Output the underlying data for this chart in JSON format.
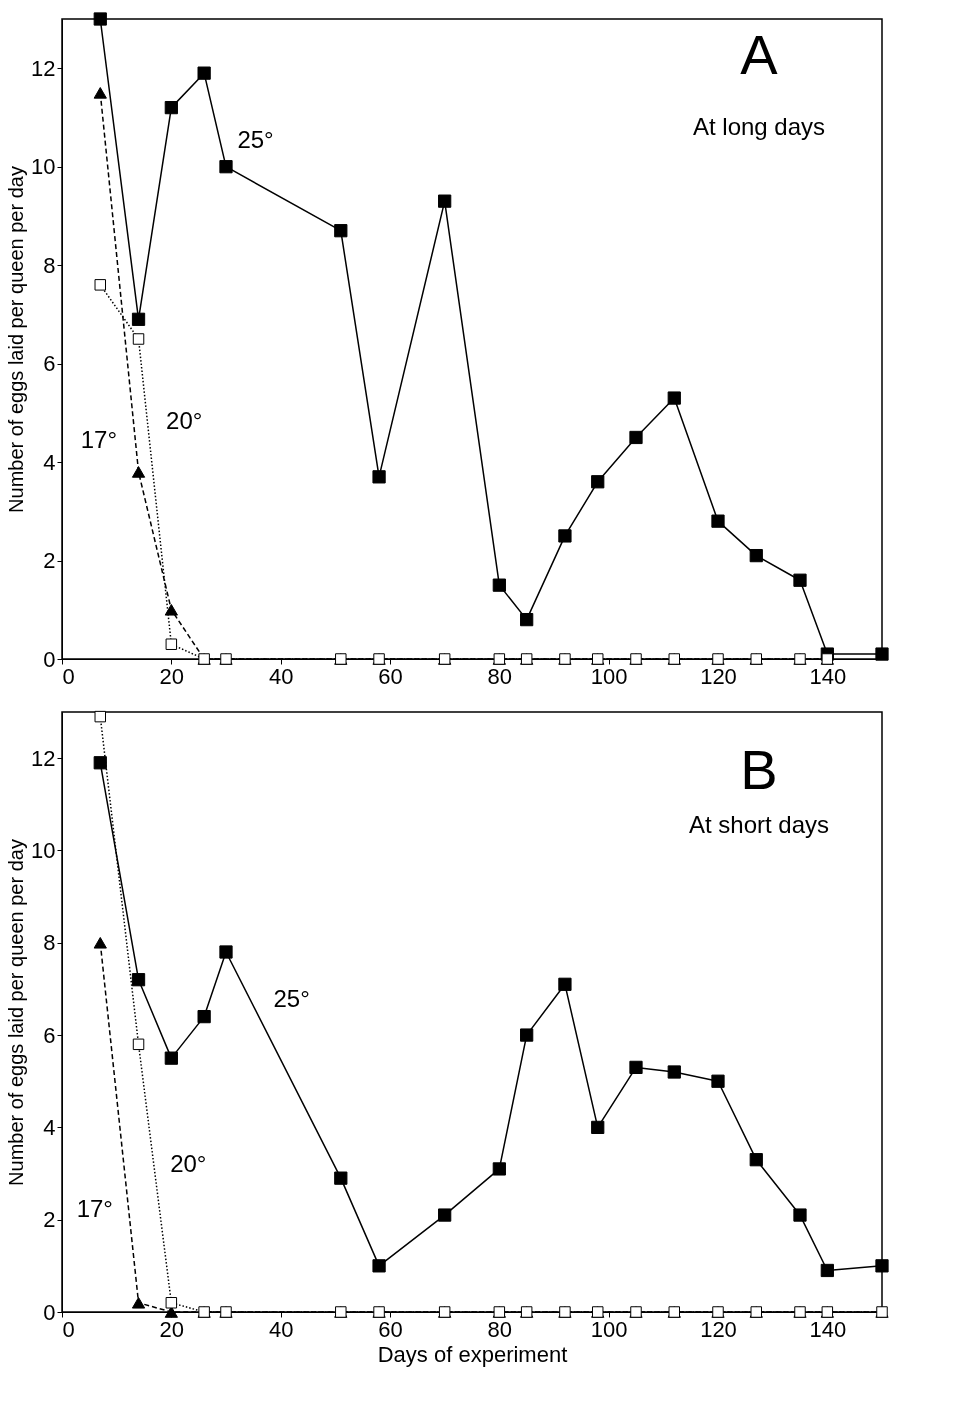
{
  "chart_data": [
    {
      "type": "line",
      "annotations": [
        "A",
        "At long days"
      ],
      "ylabel": "Number of eggs laid per queen per day",
      "x": [
        7,
        14,
        20,
        26,
        30,
        51,
        58,
        70,
        80,
        85,
        92,
        98,
        105,
        112,
        120,
        127,
        135,
        140,
        150
      ],
      "xlim": [
        0,
        150
      ],
      "xticks": [
        0,
        20,
        40,
        60,
        80,
        100,
        120,
        140
      ],
      "ylim": [
        0,
        13
      ],
      "yticks": [
        0,
        2,
        4,
        6,
        8,
        10,
        12
      ],
      "grid": false,
      "legend": false,
      "series": [
        {
          "name": "25°",
          "color": "#000000",
          "marker": "square",
          "line_style": "solid",
          "values": [
            13.0,
            6.9,
            11.2,
            11.9,
            10.0,
            8.7,
            3.7,
            9.3,
            1.5,
            0.8,
            2.5,
            3.6,
            4.5,
            5.3,
            2.8,
            2.1,
            1.6,
            0.1,
            0.1
          ]
        },
        {
          "name": "17°",
          "color": "#000000",
          "marker": "triangle",
          "line_style": "dashed",
          "values": [
            11.5,
            3.8,
            1.0,
            0,
            0,
            0,
            0,
            0,
            0,
            0,
            0,
            0,
            0,
            0,
            0,
            0,
            0,
            0,
            null
          ]
        },
        {
          "name": "20°",
          "color": "#000000",
          "marker": "square",
          "line_style": "dotted",
          "values": [
            7.6,
            6.5,
            0.3,
            0,
            0,
            0,
            0,
            0,
            0,
            0,
            0,
            0,
            0,
            0,
            0,
            0,
            0,
            0,
            null
          ]
        }
      ]
    },
    {
      "type": "line",
      "annotations": [
        "B",
        "At short days"
      ],
      "xlabel": "Days of experiment",
      "ylabel": "Number of eggs laid per queen per day",
      "x": [
        7,
        14,
        20,
        26,
        30,
        51,
        58,
        70,
        80,
        85,
        92,
        98,
        105,
        112,
        120,
        127,
        135,
        140,
        150
      ],
      "xlim": [
        0,
        150
      ],
      "xticks": [
        0,
        20,
        40,
        60,
        80,
        100,
        120,
        140
      ],
      "ylim": [
        0,
        13
      ],
      "yticks": [
        0,
        2,
        4,
        6,
        8,
        10,
        12
      ],
      "grid": false,
      "legend": false,
      "series": [
        {
          "name": "25°",
          "color": "#000000",
          "marker": "square",
          "line_style": "solid",
          "values": [
            11.9,
            7.2,
            5.5,
            6.4,
            7.8,
            2.9,
            1.0,
            2.1,
            3.1,
            6.0,
            7.1,
            4.0,
            5.3,
            5.2,
            5.0,
            3.3,
            2.1,
            0.9,
            1.0
          ]
        },
        {
          "name": "17°",
          "color": "#000000",
          "marker": "triangle",
          "line_style": "dashed",
          "values": [
            8.0,
            0.2,
            0,
            0,
            0,
            0,
            0,
            0,
            0,
            0,
            0,
            0,
            0,
            0,
            0,
            0,
            0,
            0,
            0
          ]
        },
        {
          "name": "20°",
          "color": "#000000",
          "marker": "square",
          "line_style": "dotted",
          "values": [
            12.9,
            5.8,
            0.2,
            0,
            0,
            0,
            0,
            0,
            0,
            0,
            0,
            0,
            0,
            0,
            0,
            0,
            0,
            0,
            0
          ]
        }
      ]
    }
  ]
}
